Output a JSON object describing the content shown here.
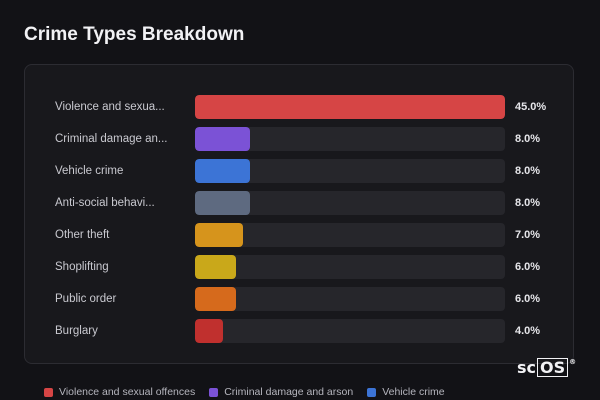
{
  "chart_data": {
    "type": "bar",
    "orientation": "horizontal",
    "title": "Crime Types Breakdown",
    "xlim": [
      0,
      45
    ],
    "categories": [
      "Violence and sexua...",
      "Criminal damage an...",
      "Vehicle crime",
      "Anti-social behavi...",
      "Other theft",
      "Shoplifting",
      "Public order",
      "Burglary"
    ],
    "values": [
      45.0,
      8.0,
      8.0,
      8.0,
      7.0,
      6.0,
      6.0,
      4.0
    ],
    "value_labels": [
      "45.0%",
      "8.0%",
      "8.0%",
      "8.0%",
      "7.0%",
      "6.0%",
      "6.0%",
      "4.0%"
    ],
    "colors": [
      "#d64545",
      "#7b52d6",
      "#3c74d6",
      "#5e6a80",
      "#d6941c",
      "#c9a81a",
      "#d66a1c",
      "#c0302e"
    ],
    "legend": {
      "placement": "bottom-left",
      "entries": [
        {
          "label": "Violence and sexual offences",
          "color": "#d64545"
        },
        {
          "label": "Criminal damage and arson",
          "color": "#7b52d6"
        },
        {
          "label": "Vehicle crime",
          "color": "#3c74d6"
        }
      ]
    }
  },
  "logo": {
    "part1": "sc",
    "part2": "OS",
    "reg": "®"
  }
}
